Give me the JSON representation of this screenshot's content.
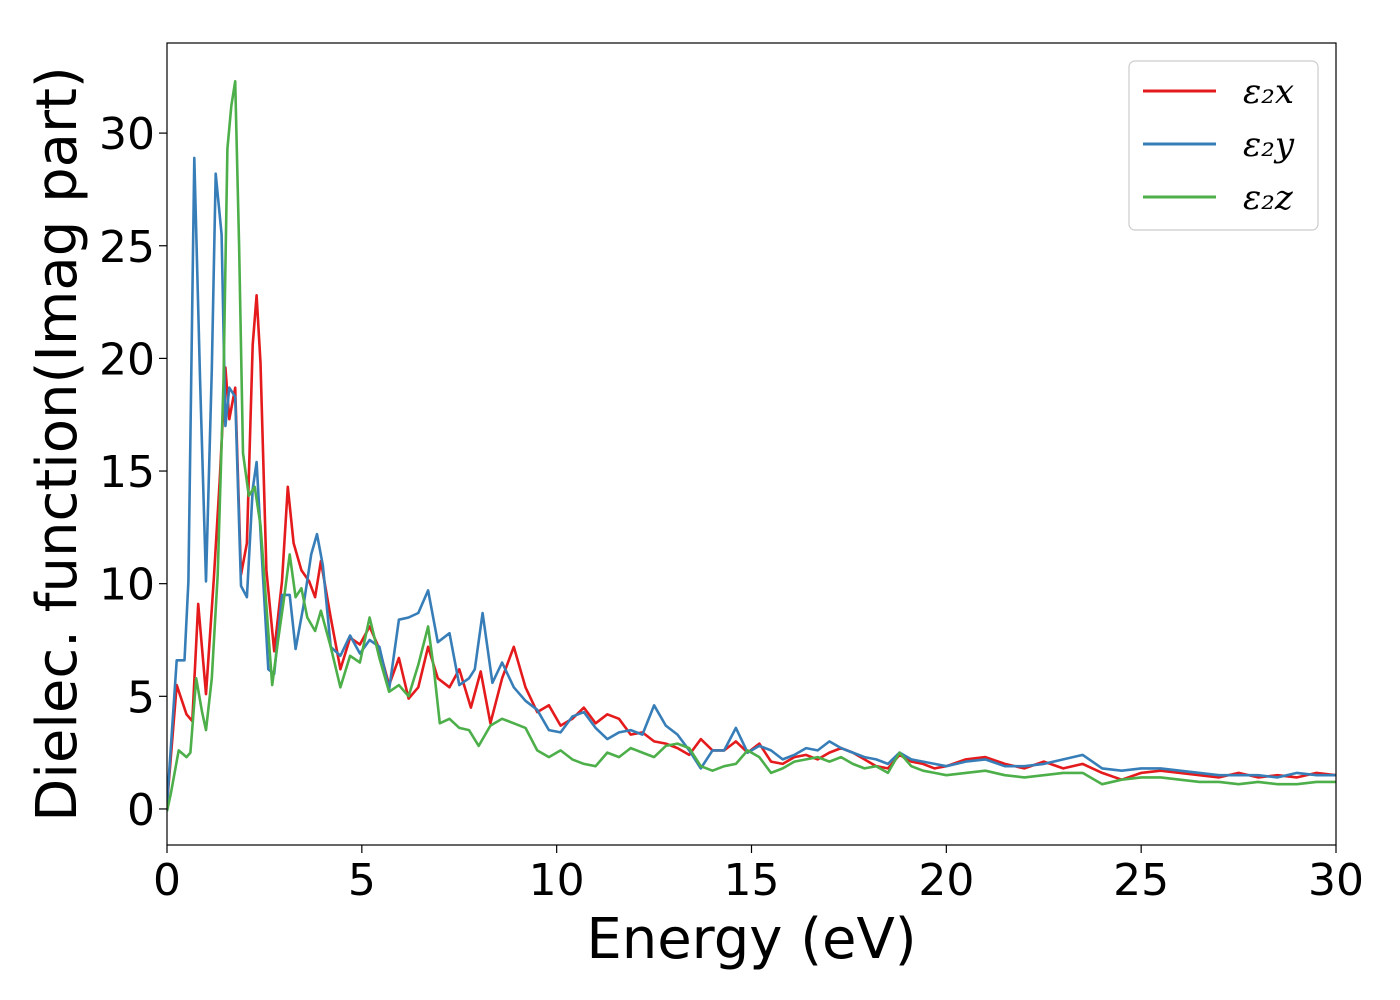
{
  "chart_data": {
    "type": "line",
    "title": "",
    "xlabel": "Energy (eV)",
    "ylabel": "Dielec. function(Imag part)",
    "xlim": [
      0,
      30
    ],
    "ylim": [
      -1.6,
      34
    ],
    "xticks": [
      0,
      5,
      10,
      15,
      20,
      25,
      30
    ],
    "yticks": [
      0,
      5,
      10,
      15,
      20,
      25,
      30
    ],
    "xtick_labels": [
      "0",
      "5",
      "10",
      "15",
      "20",
      "25",
      "30"
    ],
    "ytick_labels": [
      "0",
      "5",
      "10",
      "15",
      "20",
      "25",
      "30"
    ],
    "grid": false,
    "legend": "top-right",
    "series": [
      {
        "name": "ε₂x",
        "color": "#e41a1c",
        "x": [
          0,
          0.25,
          0.5,
          0.65,
          0.8,
          1.0,
          1.2,
          1.35,
          1.5,
          1.6,
          1.75,
          1.9,
          2.05,
          2.2,
          2.3,
          2.4,
          2.55,
          2.75,
          2.95,
          3.1,
          3.25,
          3.45,
          3.65,
          3.8,
          3.95,
          4.2,
          4.45,
          4.7,
          4.95,
          5.2,
          5.45,
          5.7,
          5.95,
          6.2,
          6.45,
          6.7,
          6.95,
          7.25,
          7.5,
          7.8,
          8.05,
          8.3,
          8.6,
          8.9,
          9.2,
          9.5,
          9.8,
          10.1,
          10.4,
          10.7,
          11.0,
          11.3,
          11.6,
          11.9,
          12.2,
          12.5,
          12.8,
          13.1,
          13.4,
          13.7,
          14.0,
          14.3,
          14.6,
          14.9,
          15.2,
          15.5,
          15.8,
          16.1,
          16.4,
          16.7,
          17.0,
          17.3,
          17.6,
          17.9,
          18.2,
          18.5,
          18.8,
          19.1,
          19.4,
          19.7,
          20.0,
          20.5,
          21.0,
          21.5,
          22.0,
          22.5,
          23.0,
          23.5,
          24.0,
          24.5,
          25.0,
          25.5,
          26.0,
          26.5,
          27.0,
          27.5,
          28.0,
          28.5,
          29.0,
          29.5,
          30.0
        ],
        "y": [
          0.2,
          5.5,
          4.2,
          3.9,
          9.1,
          5.1,
          10.2,
          14.5,
          19.6,
          17.3,
          18.7,
          10.4,
          11.8,
          20.6,
          22.8,
          19.8,
          10.6,
          7.0,
          10.1,
          14.3,
          11.8,
          10.6,
          10.1,
          9.4,
          11.0,
          8.5,
          6.2,
          7.6,
          7.3,
          8.1,
          7.1,
          5.5,
          6.7,
          4.9,
          5.4,
          7.2,
          5.8,
          5.4,
          6.2,
          4.5,
          6.1,
          3.8,
          5.8,
          7.2,
          5.4,
          4.3,
          4.6,
          3.7,
          4.0,
          4.5,
          3.8,
          4.2,
          4.0,
          3.3,
          3.4,
          3.0,
          2.9,
          2.7,
          2.4,
          3.1,
          2.6,
          2.6,
          3.0,
          2.5,
          2.9,
          2.1,
          2.0,
          2.3,
          2.4,
          2.2,
          2.5,
          2.7,
          2.5,
          2.2,
          1.9,
          1.8,
          2.4,
          2.1,
          2.0,
          1.8,
          1.9,
          2.2,
          2.3,
          2.0,
          1.8,
          2.1,
          1.8,
          2.0,
          1.6,
          1.3,
          1.6,
          1.7,
          1.6,
          1.5,
          1.4,
          1.6,
          1.4,
          1.5,
          1.4,
          1.6,
          1.5
        ]
      },
      {
        "name": "ε₂y",
        "color": "#377eb8",
        "x": [
          0,
          0.25,
          0.45,
          0.55,
          0.7,
          0.85,
          1.0,
          1.15,
          1.25,
          1.4,
          1.5,
          1.6,
          1.75,
          1.9,
          2.05,
          2.2,
          2.3,
          2.45,
          2.6,
          2.75,
          2.95,
          3.15,
          3.3,
          3.5,
          3.7,
          3.85,
          4.0,
          4.2,
          4.45,
          4.7,
          4.95,
          5.2,
          5.45,
          5.7,
          5.95,
          6.2,
          6.45,
          6.7,
          6.95,
          7.25,
          7.5,
          7.75,
          7.9,
          8.1,
          8.35,
          8.6,
          8.9,
          9.2,
          9.5,
          9.8,
          10.1,
          10.4,
          10.7,
          11.0,
          11.3,
          11.6,
          11.9,
          12.2,
          12.5,
          12.8,
          13.1,
          13.4,
          13.7,
          14.0,
          14.3,
          14.6,
          14.9,
          15.2,
          15.5,
          15.8,
          16.1,
          16.4,
          16.7,
          17.0,
          17.3,
          17.6,
          17.9,
          18.2,
          18.5,
          18.8,
          19.1,
          19.4,
          19.7,
          20.0,
          20.5,
          21.0,
          21.5,
          22.0,
          22.5,
          23.0,
          23.5,
          24.0,
          24.5,
          25.0,
          25.5,
          26.0,
          26.5,
          27.0,
          27.5,
          28.0,
          28.5,
          29.0,
          29.5,
          30.0
        ],
        "y": [
          0.2,
          6.6,
          6.6,
          10.1,
          28.9,
          19.0,
          10.1,
          19.5,
          28.2,
          25.5,
          17.0,
          18.7,
          18.3,
          9.9,
          9.4,
          14.2,
          15.4,
          10.7,
          6.2,
          6.0,
          9.5,
          9.5,
          7.1,
          9.0,
          11.3,
          12.2,
          10.8,
          7.2,
          6.8,
          7.7,
          6.9,
          7.5,
          7.2,
          5.3,
          8.4,
          8.5,
          8.7,
          9.7,
          7.4,
          7.8,
          5.5,
          5.8,
          6.2,
          8.7,
          5.6,
          6.5,
          5.4,
          4.8,
          4.4,
          3.5,
          3.4,
          4.1,
          4.3,
          3.6,
          3.1,
          3.4,
          3.5,
          3.3,
          4.6,
          3.7,
          3.3,
          2.6,
          1.8,
          2.6,
          2.6,
          3.6,
          2.5,
          2.8,
          2.6,
          2.2,
          2.4,
          2.7,
          2.6,
          3.0,
          2.7,
          2.5,
          2.3,
          2.2,
          2.0,
          2.5,
          2.2,
          2.1,
          2.0,
          1.9,
          2.1,
          2.2,
          1.9,
          1.9,
          2.0,
          2.2,
          2.4,
          1.8,
          1.7,
          1.8,
          1.8,
          1.7,
          1.6,
          1.5,
          1.5,
          1.5,
          1.4,
          1.6,
          1.5,
          1.5
        ]
      },
      {
        "name": "ε₂z",
        "color": "#4daf4a",
        "x": [
          0,
          0.1,
          0.3,
          0.5,
          0.6,
          0.75,
          0.9,
          1.0,
          1.15,
          1.3,
          1.45,
          1.55,
          1.65,
          1.75,
          1.85,
          1.95,
          2.1,
          2.25,
          2.4,
          2.55,
          2.7,
          2.85,
          3.0,
          3.15,
          3.3,
          3.45,
          3.6,
          3.8,
          3.95,
          4.2,
          4.45,
          4.7,
          4.95,
          5.2,
          5.45,
          5.7,
          5.95,
          6.2,
          6.45,
          6.7,
          6.85,
          7.0,
          7.25,
          7.5,
          7.75,
          8.0,
          8.3,
          8.6,
          8.9,
          9.2,
          9.5,
          9.8,
          10.1,
          10.4,
          10.7,
          11.0,
          11.3,
          11.6,
          11.9,
          12.2,
          12.5,
          12.8,
          13.1,
          13.4,
          13.7,
          14.0,
          14.3,
          14.6,
          14.9,
          15.2,
          15.5,
          15.8,
          16.1,
          16.4,
          16.7,
          17.0,
          17.3,
          17.6,
          17.9,
          18.2,
          18.5,
          18.8,
          19.1,
          19.4,
          19.7,
          20.0,
          20.5,
          21.0,
          21.5,
          22.0,
          22.5,
          23.0,
          23.5,
          24.0,
          24.5,
          25.0,
          25.5,
          26.0,
          26.5,
          27.0,
          27.5,
          28.0,
          28.5,
          29.0,
          29.5,
          30.0
        ],
        "y": [
          -0.1,
          0.7,
          2.6,
          2.3,
          2.5,
          5.8,
          4.3,
          3.5,
          5.8,
          10.4,
          19.0,
          29.3,
          31.2,
          32.3,
          25.0,
          15.8,
          13.9,
          14.3,
          12.6,
          9.0,
          5.5,
          7.5,
          9.3,
          11.3,
          9.4,
          9.8,
          8.5,
          7.9,
          8.8,
          7.2,
          5.4,
          6.8,
          6.5,
          8.5,
          6.7,
          5.2,
          5.5,
          5.0,
          6.4,
          8.1,
          6.2,
          3.8,
          4.0,
          3.6,
          3.5,
          2.8,
          3.7,
          4.0,
          3.8,
          3.6,
          2.6,
          2.3,
          2.6,
          2.2,
          2.0,
          1.9,
          2.5,
          2.3,
          2.7,
          2.5,
          2.3,
          2.8,
          2.9,
          2.7,
          1.9,
          1.7,
          1.9,
          2.0,
          2.6,
          2.3,
          1.6,
          1.8,
          2.1,
          2.2,
          2.3,
          2.1,
          2.3,
          2.0,
          1.8,
          1.9,
          1.6,
          2.5,
          1.9,
          1.7,
          1.6,
          1.5,
          1.6,
          1.7,
          1.5,
          1.4,
          1.5,
          1.6,
          1.6,
          1.1,
          1.3,
          1.4,
          1.4,
          1.3,
          1.2,
          1.2,
          1.1,
          1.2,
          1.1,
          1.1,
          1.2,
          1.2
        ]
      }
    ]
  }
}
